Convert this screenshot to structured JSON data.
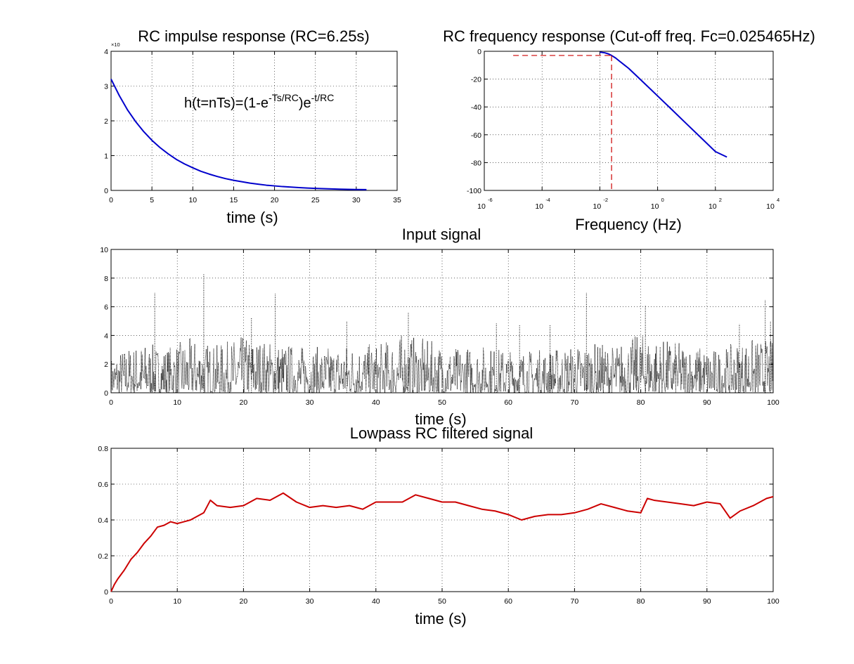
{
  "chart_data": [
    {
      "id": "impulse",
      "type": "line",
      "title": "RC impulse response (RC=6.25s)",
      "xlabel": "time (s)",
      "ylabel": "",
      "xlim": [
        0,
        35
      ],
      "ylim": [
        0,
        4
      ],
      "x_ticks": [
        0,
        5,
        10,
        15,
        20,
        25,
        30,
        35
      ],
      "y_ticks": [
        0,
        1,
        2,
        3,
        4
      ],
      "y_multiplier_label": "×10",
      "grid": true,
      "annotation": {
        "base": "h(t=nTs)=(1-e",
        "exp1": "-Ts/RC",
        "mid": ")e",
        "exp2": "-t/RC"
      },
      "series": [
        {
          "color": "#0000cc",
          "x": [
            0,
            1,
            2,
            3,
            4,
            5,
            6,
            7,
            8,
            9,
            10,
            11,
            12,
            13,
            14,
            15,
            16,
            17,
            18,
            19,
            20,
            21,
            22,
            23,
            24,
            25,
            26,
            27,
            28,
            29,
            30,
            31.25
          ],
          "y": [
            3.2,
            2.73,
            2.32,
            1.98,
            1.69,
            1.44,
            1.23,
            1.05,
            0.89,
            0.76,
            0.65,
            0.55,
            0.47,
            0.4,
            0.34,
            0.29,
            0.25,
            0.21,
            0.18,
            0.15,
            0.13,
            0.11,
            0.095,
            0.081,
            0.069,
            0.059,
            0.05,
            0.043,
            0.036,
            0.031,
            0.026,
            0.022
          ]
        }
      ]
    },
    {
      "id": "freq",
      "type": "line",
      "title": "RC frequency response (Cut-off freq. Fc=0.025465Hz)",
      "xlabel": "Frequency (Hz)",
      "ylabel": "",
      "x_scale": "log",
      "xlim": [
        1e-06,
        10000
      ],
      "ylim": [
        -100,
        0
      ],
      "x_ticks": [
        1e-06,
        0.0001,
        0.01,
        1,
        100,
        10000
      ],
      "x_tick_base": "10",
      "x_tick_exps": [
        "-6",
        "-4",
        "-2",
        "0",
        "2",
        "4"
      ],
      "y_ticks": [
        -100,
        -80,
        -60,
        -40,
        -20,
        0
      ],
      "grid": true,
      "series": [
        {
          "color": "#0000cc",
          "x": [
            0.01,
            0.015,
            0.02,
            0.025465,
            0.035,
            0.05,
            0.1,
            0.3,
            1,
            3,
            10,
            30,
            100,
            250
          ],
          "y": [
            -0.6,
            -1.1,
            -1.9,
            -3,
            -4.8,
            -7.4,
            -12.3,
            -21.7,
            -32.1,
            -41.6,
            -52.1,
            -61.6,
            -72.1,
            -76
          ]
        }
      ],
      "cutoff_marker": {
        "color": "#cc0000",
        "fc": 0.025465,
        "db": -3,
        "x_start": 1e-05
      }
    },
    {
      "id": "input",
      "type": "line",
      "title": "Input signal",
      "xlabel": "time (s)",
      "ylabel": "",
      "xlim": [
        0,
        100
      ],
      "ylim": [
        0,
        10
      ],
      "x_ticks": [
        0,
        10,
        20,
        30,
        40,
        50,
        60,
        70,
        80,
        90,
        100
      ],
      "y_ticks": [
        0,
        2,
        4,
        6,
        8,
        10
      ],
      "grid": true,
      "series": [
        {
          "color": "#000000",
          "style": "dotted",
          "spikes": [
            [
              6.6,
              7.0
            ],
            [
              14.0,
              8.3
            ],
            [
              21.2,
              5.2
            ],
            [
              24.8,
              6.9
            ],
            [
              35.6,
              5.0
            ],
            [
              44.9,
              5.6
            ],
            [
              58.2,
              4.9
            ],
            [
              61.7,
              4.7
            ],
            [
              66.3,
              4.7
            ],
            [
              71.8,
              7.0
            ],
            [
              80.7,
              6.1
            ],
            [
              94.9,
              4.8
            ],
            [
              98.8,
              6.5
            ],
            [
              99.6,
              5.0
            ]
          ],
          "levels": [
            [
              0,
              1.6
            ],
            [
              2,
              2.0
            ],
            [
              5,
              2.2
            ],
            [
              8,
              2.0
            ],
            [
              12,
              2.4
            ],
            [
              16,
              2.1
            ],
            [
              20,
              2.5
            ],
            [
              24,
              2.3
            ],
            [
              28,
              2.1
            ],
            [
              32,
              2.0
            ],
            [
              36,
              2.2
            ],
            [
              40,
              2.1
            ],
            [
              44,
              2.6
            ],
            [
              48,
              2.3
            ],
            [
              52,
              2.0
            ],
            [
              56,
              2.1
            ],
            [
              60,
              1.9
            ],
            [
              64,
              1.9
            ],
            [
              68,
              2.0
            ],
            [
              72,
              2.2
            ],
            [
              76,
              2.1
            ],
            [
              80,
              2.6
            ],
            [
              84,
              2.3
            ],
            [
              88,
              2.1
            ],
            [
              92,
              1.9
            ],
            [
              96,
              2.4
            ],
            [
              100,
              2.3
            ]
          ]
        }
      ]
    },
    {
      "id": "output",
      "type": "line",
      "title": "Lowpass RC filtered signal",
      "xlabel": "time (s)",
      "ylabel": "",
      "xlim": [
        0,
        100
      ],
      "ylim": [
        0,
        0.8
      ],
      "x_ticks": [
        0,
        10,
        20,
        30,
        40,
        50,
        60,
        70,
        80,
        90,
        100
      ],
      "y_ticks": [
        0,
        0.2,
        0.4,
        0.6,
        0.8
      ],
      "grid": true,
      "series": [
        {
          "color": "#cc0000",
          "x": [
            0,
            0.5,
            1,
            2,
            3,
            4,
            5,
            6,
            7,
            8,
            9,
            10,
            11,
            12,
            13,
            14,
            15,
            16,
            18,
            20,
            22,
            24,
            26,
            28,
            30,
            32,
            34,
            36,
            38,
            40,
            42,
            44,
            46,
            48,
            50,
            52,
            54,
            56,
            58,
            60,
            62,
            64,
            66,
            68,
            70,
            72,
            74,
            76,
            78,
            80,
            81,
            82,
            84,
            86,
            88,
            90,
            92,
            93.5,
            95,
            97,
            99,
            100
          ],
          "y": [
            0.0,
            0.04,
            0.07,
            0.12,
            0.18,
            0.22,
            0.27,
            0.31,
            0.36,
            0.37,
            0.39,
            0.38,
            0.39,
            0.4,
            0.42,
            0.44,
            0.51,
            0.48,
            0.47,
            0.48,
            0.52,
            0.51,
            0.55,
            0.5,
            0.47,
            0.48,
            0.47,
            0.48,
            0.46,
            0.5,
            0.5,
            0.5,
            0.54,
            0.52,
            0.5,
            0.5,
            0.48,
            0.46,
            0.45,
            0.43,
            0.4,
            0.42,
            0.43,
            0.43,
            0.44,
            0.46,
            0.49,
            0.47,
            0.45,
            0.44,
            0.52,
            0.51,
            0.5,
            0.49,
            0.48,
            0.5,
            0.49,
            0.41,
            0.45,
            0.48,
            0.52,
            0.53
          ]
        }
      ]
    }
  ]
}
